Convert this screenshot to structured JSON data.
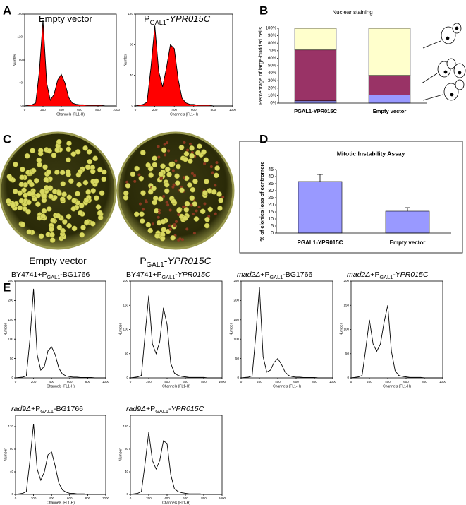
{
  "panel_labels": [
    "A",
    "B",
    "C",
    "D",
    "E"
  ],
  "plates": {
    "labels": [
      [
        {
          "text": "Empty vector"
        }
      ],
      [
        {
          "text": "P"
        },
        {
          "text": "GAL1",
          "style": "sub"
        },
        {
          "text": "-"
        },
        {
          "text": "YPR015C",
          "style": "italic"
        }
      ]
    ]
  },
  "chart_data": [
    {
      "type": "line",
      "title_parts": [
        {
          "text": "Empty vector"
        }
      ],
      "area_color": "#ff0000",
      "color": "#000000",
      "x": [
        0,
        40,
        80,
        120,
        160,
        200,
        240,
        280,
        320,
        360,
        400,
        440,
        480,
        520,
        560,
        600,
        640,
        680,
        720,
        760,
        800,
        840,
        880,
        920,
        960,
        1000
      ],
      "values": [
        0,
        1,
        2,
        5,
        60,
        150,
        40,
        10,
        20,
        45,
        55,
        40,
        15,
        5,
        3,
        2,
        2,
        1,
        1,
        1,
        1,
        1,
        0,
        0,
        0,
        0
      ],
      "xlim": [
        0,
        1000
      ],
      "xticks": [
        0,
        200,
        400,
        600,
        800,
        1000
      ],
      "ylim": [
        0,
        160
      ],
      "yticks": [
        0,
        40,
        80,
        120,
        160
      ],
      "xlabel": "Channels (FL1-H)",
      "ylabel": "Number"
    },
    {
      "type": "line",
      "title_parts": [
        {
          "text": "P"
        },
        {
          "text": "GAL1",
          "style": "sub"
        },
        {
          "text": "-"
        },
        {
          "text": "YPR015C",
          "style": "italic"
        }
      ],
      "area_color": "#ff0000",
      "color": "#000000",
      "x": [
        0,
        40,
        80,
        120,
        160,
        200,
        240,
        280,
        320,
        360,
        400,
        440,
        480,
        520,
        560,
        600,
        640,
        680,
        720,
        760,
        800,
        840,
        880,
        920,
        960,
        1000
      ],
      "values": [
        0,
        1,
        2,
        5,
        50,
        105,
        45,
        25,
        50,
        80,
        75,
        35,
        10,
        4,
        2,
        2,
        1,
        1,
        1,
        1,
        0,
        0,
        0,
        0,
        0,
        0
      ],
      "xlim": [
        0,
        1000
      ],
      "xticks": [
        0,
        200,
        400,
        600,
        800,
        1000
      ],
      "ylim": [
        0,
        120
      ],
      "yticks": [
        0,
        40,
        80,
        120
      ],
      "xlabel": "Channels (FL1-H)",
      "ylabel": "Number"
    },
    {
      "type": "stacked_bar",
      "title": "Nuclear staining",
      "ylabel": "Percentage of large-budded cells",
      "categories": [
        "PGAL1-YPR015C",
        "Empty vector"
      ],
      "series": [
        {
          "color": "#9999ff",
          "values": [
            3,
            11
          ]
        },
        {
          "color": "#993366",
          "values": [
            68,
            26
          ]
        },
        {
          "color": "#ffffcc",
          "values": [
            29,
            63
          ]
        }
      ],
      "ylim": [
        0,
        100
      ],
      "yticks": [
        {
          "value": 0,
          "label": "0%"
        },
        {
          "value": 10,
          "label": "10%"
        },
        {
          "value": 20,
          "label": "20%"
        },
        {
          "value": 30,
          "label": "30%"
        },
        {
          "value": 40,
          "label": "40%"
        },
        {
          "value": 50,
          "label": "50%"
        },
        {
          "value": 60,
          "label": "60%"
        },
        {
          "value": 70,
          "label": "70%"
        },
        {
          "value": 80,
          "label": "80%"
        },
        {
          "value": 90,
          "label": "90%"
        },
        {
          "value": 100,
          "label": "100%"
        }
      ]
    },
    {
      "type": "bar",
      "title": "Mitotic Instability Assay",
      "ylabel": "% of clonies loss of centromere",
      "categories": [
        "PGAL1-YPR015C",
        "Empty vector"
      ],
      "values": [
        36.5,
        15.5
      ],
      "errors": [
        5,
        2.5
      ],
      "color": "#9999ff",
      "ylim": [
        0,
        45
      ],
      "yticks": [
        0,
        5,
        10,
        15,
        20,
        25,
        30,
        35,
        40,
        45
      ]
    },
    {
      "type": "line",
      "title_parts": [
        {
          "text": "BY4741+P"
        },
        {
          "text": "GAL1",
          "style": "sub"
        },
        {
          "text": "-BG1766"
        }
      ],
      "color": "#000000",
      "x": [
        0,
        40,
        80,
        120,
        160,
        200,
        240,
        280,
        320,
        360,
        400,
        440,
        480,
        520,
        560,
        600,
        640,
        680,
        720,
        760,
        800,
        840,
        880,
        920,
        960,
        1000
      ],
      "values": [
        0,
        1,
        2,
        5,
        100,
        230,
        60,
        20,
        30,
        70,
        80,
        60,
        25,
        10,
        5,
        3,
        2,
        2,
        1,
        1,
        1,
        1,
        0,
        0,
        0,
        0
      ],
      "xlim": [
        0,
        1000
      ],
      "xticks": [
        0,
        200,
        400,
        600,
        800,
        1000
      ],
      "ylim": [
        0,
        250
      ],
      "yticks": [
        0,
        50,
        100,
        150,
        200,
        250
      ],
      "xlabel": "Channels (FL1-H)",
      "ylabel": "Number"
    },
    {
      "type": "line",
      "title_parts": [
        {
          "text": "BY4741+P"
        },
        {
          "text": "GAL1",
          "style": "sub"
        },
        {
          "text": "-"
        },
        {
          "text": "YPR015C",
          "style": "italic"
        }
      ],
      "color": "#000000",
      "x": [
        0,
        40,
        80,
        120,
        160,
        200,
        240,
        280,
        320,
        360,
        400,
        440,
        480,
        520,
        560,
        600,
        640,
        680,
        720,
        760,
        800,
        840,
        880,
        920,
        960,
        1000
      ],
      "values": [
        0,
        1,
        2,
        5,
        90,
        170,
        70,
        50,
        75,
        145,
        110,
        30,
        10,
        5,
        3,
        2,
        1,
        1,
        1,
        1,
        1,
        0,
        0,
        0,
        0,
        0
      ],
      "xlim": [
        0,
        1000
      ],
      "xticks": [
        0,
        200,
        400,
        600,
        800,
        1000
      ],
      "ylim": [
        0,
        200
      ],
      "yticks": [
        0,
        50,
        100,
        150,
        200
      ],
      "xlabel": "Channels (FL1-H)",
      "ylabel": "Number"
    },
    {
      "type": "line",
      "title_parts": [
        {
          "text": "mad2Δ",
          "style": "italic"
        },
        {
          "text": "+P"
        },
        {
          "text": "GAL1",
          "style": "sub"
        },
        {
          "text": "-BG1766"
        }
      ],
      "color": "#000000",
      "x": [
        0,
        40,
        80,
        120,
        160,
        200,
        240,
        280,
        320,
        360,
        400,
        440,
        480,
        520,
        560,
        600,
        640,
        680,
        720,
        760,
        800,
        840,
        880,
        920,
        960,
        1000
      ],
      "values": [
        0,
        1,
        2,
        5,
        110,
        235,
        55,
        15,
        20,
        40,
        50,
        35,
        15,
        6,
        3,
        2,
        2,
        1,
        1,
        1,
        1,
        0,
        0,
        0,
        0,
        0
      ],
      "xlim": [
        0,
        1000
      ],
      "xticks": [
        0,
        200,
        400,
        600,
        800,
        1000
      ],
      "ylim": [
        0,
        250
      ],
      "yticks": [
        0,
        50,
        100,
        150,
        200,
        250
      ],
      "xlabel": "Channels (FL1-H)",
      "ylabel": "Number"
    },
    {
      "type": "line",
      "title_parts": [
        {
          "text": "mad2Δ",
          "style": "italic"
        },
        {
          "text": "+P"
        },
        {
          "text": "GAL1",
          "style": "sub"
        },
        {
          "text": "-"
        },
        {
          "text": "YPR015C",
          "style": "italic"
        }
      ],
      "color": "#000000",
      "x": [
        0,
        40,
        80,
        120,
        160,
        200,
        240,
        280,
        320,
        360,
        400,
        440,
        480,
        520,
        560,
        600,
        640,
        680,
        720,
        760,
        800,
        840,
        880,
        920,
        960,
        1000
      ],
      "values": [
        0,
        1,
        2,
        5,
        60,
        120,
        70,
        55,
        70,
        115,
        150,
        55,
        15,
        5,
        3,
        2,
        1,
        1,
        1,
        1,
        0,
        0,
        0,
        0,
        0,
        0
      ],
      "xlim": [
        0,
        1000
      ],
      "xticks": [
        0,
        200,
        400,
        600,
        800,
        1000
      ],
      "ylim": [
        0,
        200
      ],
      "yticks": [
        0,
        50,
        100,
        150,
        200
      ],
      "xlabel": "Channels (FL1-H)",
      "ylabel": "Number"
    },
    {
      "type": "line",
      "title_parts": [
        {
          "text": "rad9Δ",
          "style": "italic"
        },
        {
          "text": "+P"
        },
        {
          "text": "GAL1",
          "style": "sub"
        },
        {
          "text": "-BG1766"
        }
      ],
      "color": "#000000",
      "x": [
        0,
        40,
        80,
        120,
        160,
        200,
        240,
        280,
        320,
        360,
        400,
        440,
        480,
        520,
        560,
        600,
        640,
        680,
        720,
        760,
        800,
        840,
        880,
        920,
        960,
        1000
      ],
      "values": [
        0,
        1,
        2,
        5,
        60,
        125,
        45,
        25,
        40,
        70,
        75,
        50,
        20,
        8,
        4,
        2,
        2,
        1,
        1,
        1,
        0,
        0,
        0,
        0,
        0,
        0
      ],
      "xlim": [
        0,
        1000
      ],
      "xticks": [
        0,
        200,
        400,
        600,
        800,
        1000
      ],
      "ylim": [
        0,
        140
      ],
      "yticks": [
        0,
        40,
        80,
        120
      ],
      "xlabel": "Channels (FL1-H)",
      "ylabel": "Number"
    },
    {
      "type": "line",
      "title_parts": [
        {
          "text": "rad9Δ",
          "style": "italic"
        },
        {
          "text": "+P"
        },
        {
          "text": "GAL1",
          "style": "sub"
        },
        {
          "text": "-"
        },
        {
          "text": "YPR015C",
          "style": "italic"
        }
      ],
      "color": "#000000",
      "x": [
        0,
        40,
        80,
        120,
        160,
        200,
        240,
        280,
        320,
        360,
        400,
        440,
        480,
        520,
        560,
        600,
        640,
        680,
        720,
        760,
        800,
        840,
        880,
        920,
        960,
        1000
      ],
      "values": [
        0,
        1,
        2,
        5,
        55,
        110,
        60,
        45,
        60,
        95,
        90,
        35,
        10,
        5,
        3,
        2,
        1,
        1,
        1,
        1,
        0,
        0,
        0,
        0,
        0,
        0
      ],
      "xlim": [
        0,
        1000
      ],
      "xticks": [
        0,
        200,
        400,
        600,
        800,
        1000
      ],
      "ylim": [
        0,
        140
      ],
      "yticks": [
        0,
        40,
        80,
        120
      ],
      "xlabel": "Channels (FL1-H)",
      "ylabel": "Number"
    }
  ]
}
